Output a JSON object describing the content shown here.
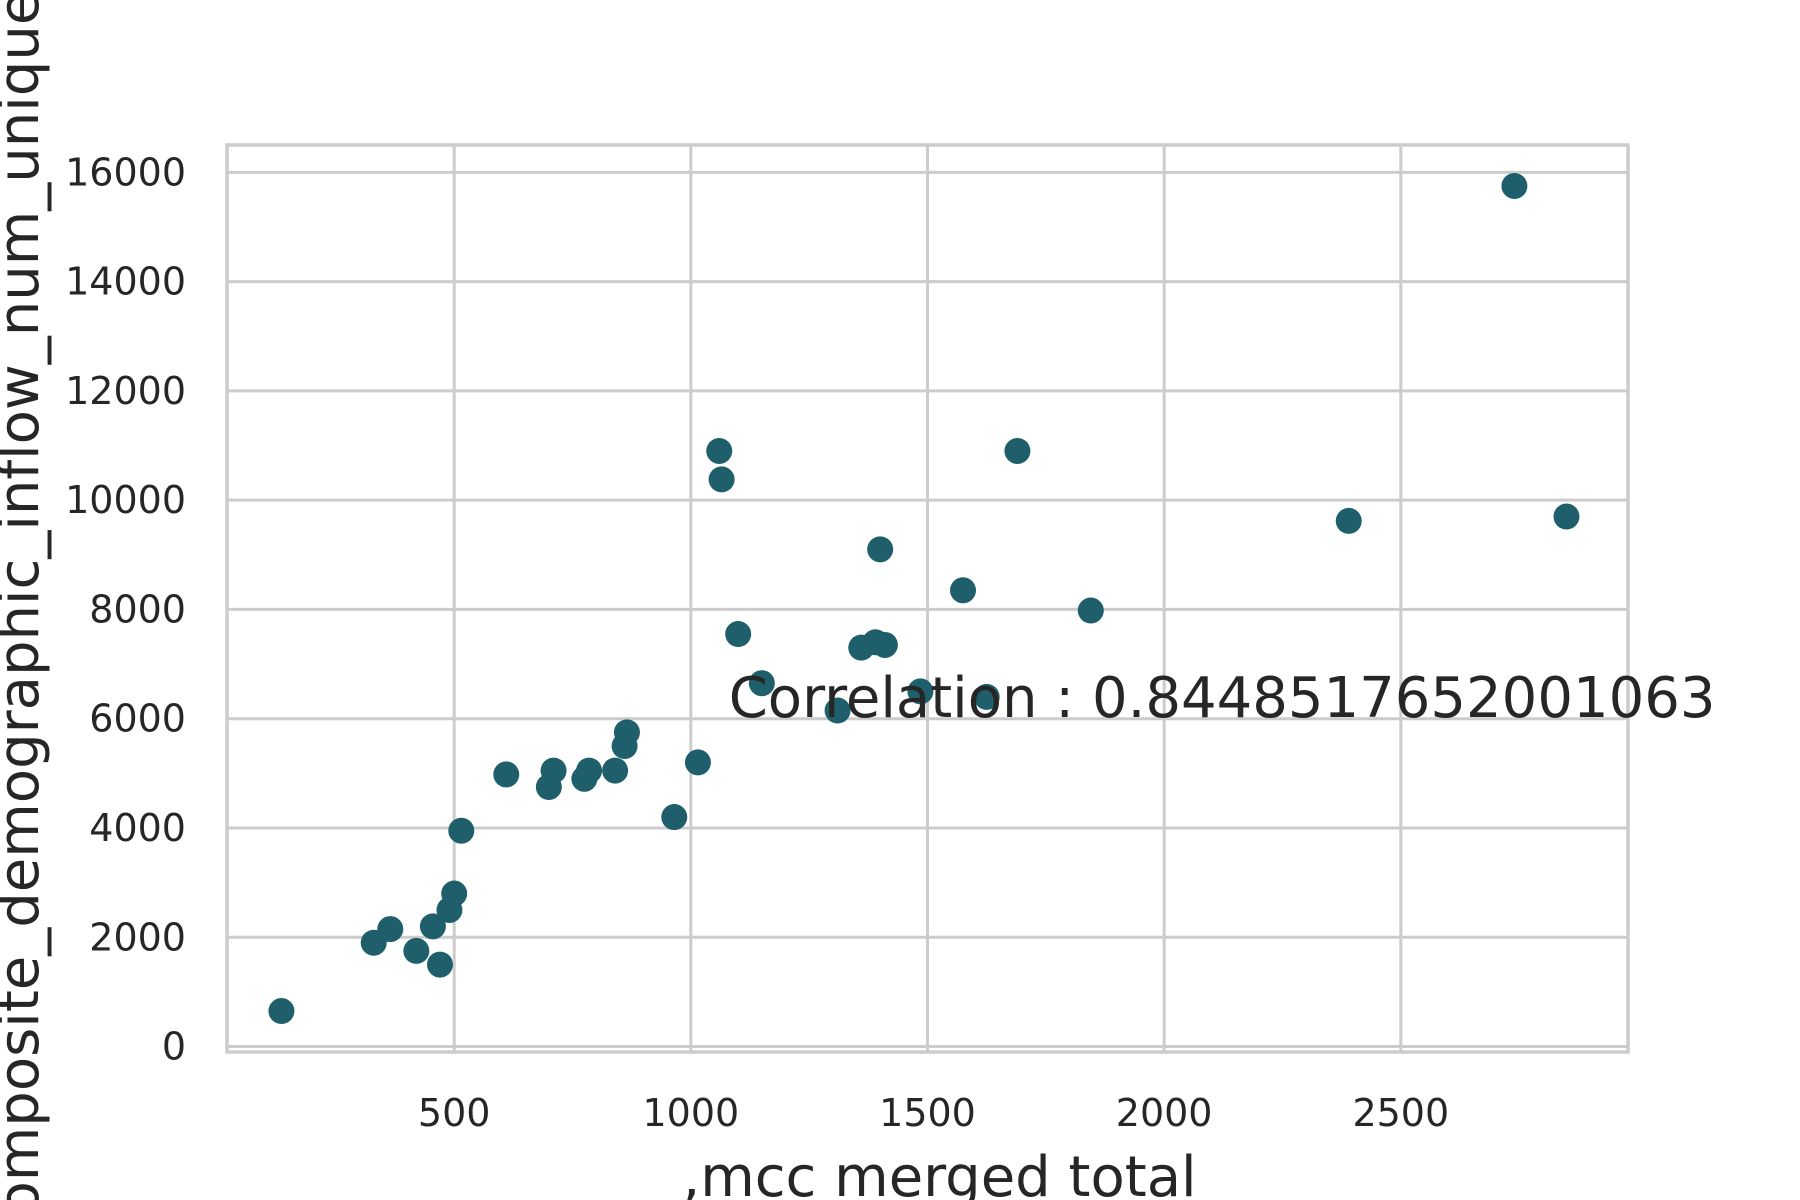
{
  "chart_data": {
    "type": "scatter",
    "title": "",
    "xlabel": ",mcc  merged  total",
    "ylabel": "composite_demographic_inflow_num_unique",
    "xlim": [
      20,
      2980
    ],
    "ylim": [
      -100,
      16500
    ],
    "x_ticks": [
      500,
      1000,
      1500,
      2000,
      2500
    ],
    "y_ticks": [
      0,
      2000,
      4000,
      6000,
      8000,
      10000,
      12000,
      14000,
      16000
    ],
    "grid": true,
    "annotation": "Correlation : 0.8448517652001063",
    "annotation_position": [
      1080,
      6400
    ],
    "point_color": "#1f5f6b",
    "points": [
      {
        "x": 135,
        "y": 650
      },
      {
        "x": 330,
        "y": 1900
      },
      {
        "x": 365,
        "y": 2150
      },
      {
        "x": 420,
        "y": 1750
      },
      {
        "x": 455,
        "y": 2200
      },
      {
        "x": 470,
        "y": 1500
      },
      {
        "x": 490,
        "y": 2500
      },
      {
        "x": 500,
        "y": 2800
      },
      {
        "x": 515,
        "y": 3950
      },
      {
        "x": 610,
        "y": 4980
      },
      {
        "x": 700,
        "y": 4750
      },
      {
        "x": 710,
        "y": 5050
      },
      {
        "x": 775,
        "y": 4900
      },
      {
        "x": 785,
        "y": 5050
      },
      {
        "x": 840,
        "y": 5050
      },
      {
        "x": 860,
        "y": 5500
      },
      {
        "x": 865,
        "y": 5750
      },
      {
        "x": 965,
        "y": 4200
      },
      {
        "x": 1015,
        "y": 5200
      },
      {
        "x": 1060,
        "y": 10900
      },
      {
        "x": 1065,
        "y": 10380
      },
      {
        "x": 1100,
        "y": 7550
      },
      {
        "x": 1150,
        "y": 6650
      },
      {
        "x": 1310,
        "y": 6150
      },
      {
        "x": 1360,
        "y": 7300
      },
      {
        "x": 1390,
        "y": 7400
      },
      {
        "x": 1400,
        "y": 9100
      },
      {
        "x": 1410,
        "y": 7350
      },
      {
        "x": 1485,
        "y": 6500
      },
      {
        "x": 1575,
        "y": 8350
      },
      {
        "x": 1625,
        "y": 6400
      },
      {
        "x": 1690,
        "y": 10900
      },
      {
        "x": 1845,
        "y": 7980
      },
      {
        "x": 2390,
        "y": 9620
      },
      {
        "x": 2740,
        "y": 15750
      },
      {
        "x": 2850,
        "y": 9700
      }
    ]
  }
}
